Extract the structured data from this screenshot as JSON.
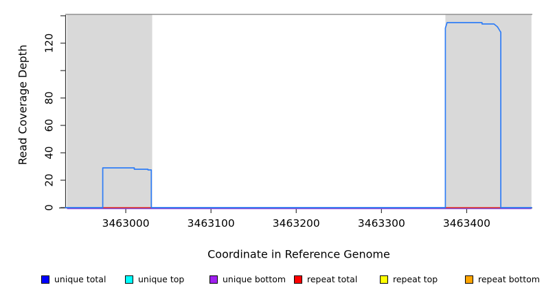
{
  "chart_data": {
    "type": "line",
    "title": "",
    "xlabel": "Coordinate in Reference Genome",
    "ylabel": "Read Coverage Depth",
    "xlim": [
      3462929,
      3463477
    ],
    "ylim": [
      0,
      141
    ],
    "grid": false,
    "x_ticks": [
      3463000,
      3463100,
      3463200,
      3463300,
      3463400
    ],
    "y_ticks": [
      {
        "value": 0,
        "label": "0"
      },
      {
        "value": 20,
        "label": "20"
      },
      {
        "value": 40,
        "label": "40"
      },
      {
        "value": 60,
        "label": "60"
      },
      {
        "value": 80,
        "label": "80"
      },
      {
        "value": 100,
        "label": ""
      },
      {
        "value": 120,
        "label": "120"
      },
      {
        "value": 140,
        "label": ""
      }
    ],
    "repeat_regions": [
      {
        "start": 3462931,
        "end": 3463031
      },
      {
        "start": 3463375,
        "end": 3463476
      }
    ],
    "region_top_value": 141,
    "region_fill": "#d9d9d9",
    "region_border": "#909090",
    "series": [
      {
        "name": "unique total",
        "color": "#2e7cf6",
        "points": [
          [
            3462929,
            0
          ],
          [
            3462973,
            0
          ],
          [
            3462973,
            29
          ],
          [
            3463010,
            29
          ],
          [
            3463010,
            28
          ],
          [
            3463026,
            28
          ],
          [
            3463026,
            27.5
          ],
          [
            3463030,
            27.5
          ],
          [
            3463030,
            0
          ],
          [
            3463375,
            0
          ],
          [
            3463375,
            131
          ],
          [
            3463377,
            135
          ],
          [
            3463418,
            135
          ],
          [
            3463418,
            134
          ],
          [
            3463432,
            134
          ],
          [
            3463434,
            133
          ],
          [
            3463436,
            132
          ],
          [
            3463437,
            131
          ],
          [
            3463438,
            130
          ],
          [
            3463439,
            129
          ],
          [
            3463440,
            128
          ],
          [
            3463440,
            0
          ],
          [
            3463476,
            0
          ]
        ]
      },
      {
        "name": "repeat total",
        "color": "#e93434",
        "value": 0,
        "visible_segments": [
          [
            3462973,
            3463030
          ],
          [
            3463375,
            3463440
          ]
        ]
      },
      {
        "name": "unique bottom",
        "color": "#8a4be0",
        "value": 0,
        "visible_segments": [
          [
            3462931,
            3463476
          ]
        ]
      }
    ],
    "legend": [
      {
        "label": "unique total",
        "color": "#0000ff"
      },
      {
        "label": "unique top",
        "color": "#00ffff"
      },
      {
        "label": "unique bottom",
        "color": "#a020f0"
      },
      {
        "label": "repeat total",
        "color": "#ff0000"
      },
      {
        "label": "repeat top",
        "color": "#ffff00"
      },
      {
        "label": "repeat bottom",
        "color": "#ffa500"
      }
    ],
    "legend_position": "bottom",
    "axis_color": "#333333"
  }
}
